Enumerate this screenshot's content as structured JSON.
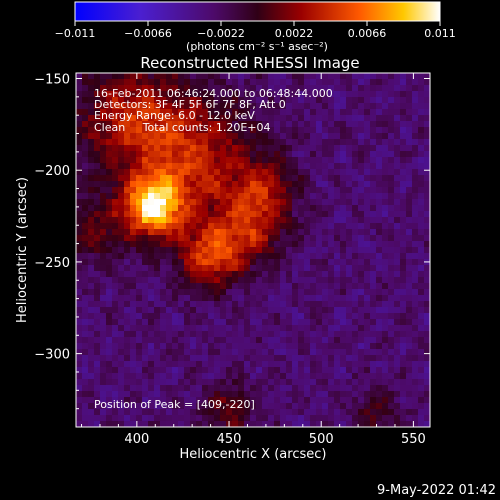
{
  "chart_data": {
    "type": "heatmap",
    "title": "Reconstructed RHESSI Image",
    "xlabel": "Heliocentric X (arcsec)",
    "ylabel": "Heliocentric Y (arcsec)",
    "xlim": [
      367,
      559
    ],
    "ylim": [
      -340,
      -147
    ],
    "xticks": [
      400,
      450,
      500,
      550
    ],
    "yticks": [
      -150,
      -200,
      -250,
      -300
    ],
    "colorbar": {
      "range": [
        -0.011,
        0.011
      ],
      "tick_labels": [
        "-0.011",
        "-0.0066",
        "-0.0022",
        "0.0022",
        "0.0066",
        "0.011"
      ],
      "unit_label": "(photons cm⁻² s⁻¹ asec⁻²)",
      "colormap": "purple-red-yellow-white"
    },
    "annotations": [
      "16-Feb-2011 06:46:24.000 to 06:48:44.000",
      "Detectors: 3F 4F 5F 6F 7F 8F, Att 0",
      "Energy Range: 6.0 - 12.0 keV",
      "Clean     Total counts: 1.20E+04"
    ],
    "peak_label": "Position of Peak = [409,-220]",
    "peak_position": [
      409,
      -220
    ],
    "peak_value": 0.011,
    "sources": [
      {
        "x": 409,
        "y": -220,
        "amplitude": 0.0115,
        "sigma": 11
      },
      {
        "x": 430,
        "y": -195,
        "amplitude": 0.0065,
        "sigma": 24
      },
      {
        "x": 395,
        "y": -170,
        "amplitude": 0.0055,
        "sigma": 20
      },
      {
        "x": 440,
        "y": -247,
        "amplitude": 0.0072,
        "sigma": 12
      },
      {
        "x": 462,
        "y": -232,
        "amplitude": 0.0052,
        "sigma": 13
      },
      {
        "x": 470,
        "y": -210,
        "amplitude": 0.0042,
        "sigma": 12
      },
      {
        "x": 378,
        "y": -232,
        "amplitude": 0.0035,
        "sigma": 13
      },
      {
        "x": 450,
        "y": -330,
        "amplitude": 0.0038,
        "sigma": 10
      },
      {
        "x": 530,
        "y": -333,
        "amplitude": 0.003,
        "sigma": 10
      }
    ],
    "background_level": -0.0028
  },
  "footer": {
    "timestamp": "9-May-2022 01:42"
  }
}
